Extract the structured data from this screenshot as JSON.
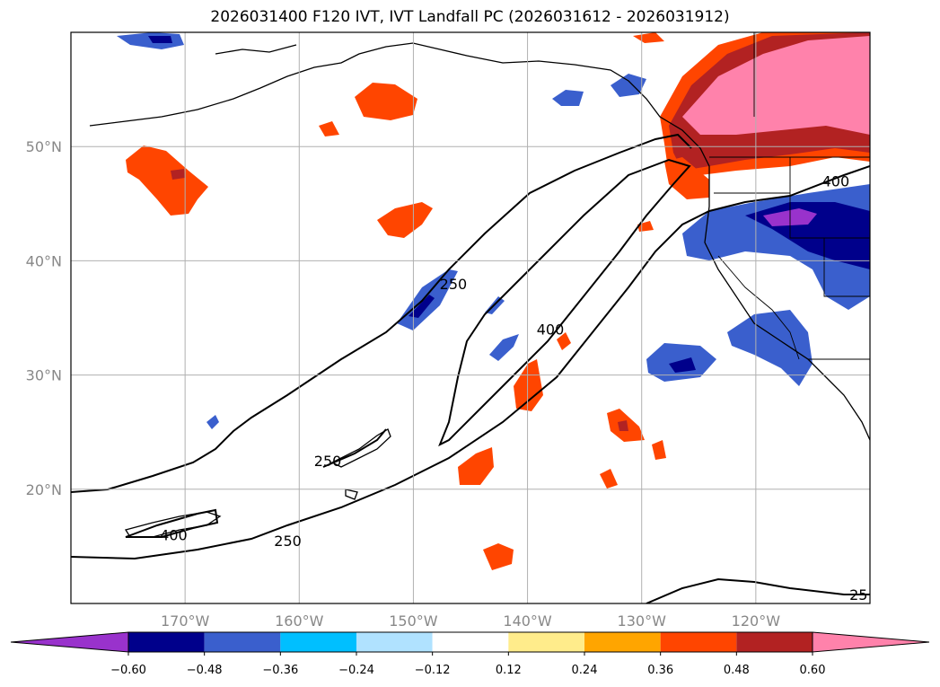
{
  "title": "2026031400 F120 IVT, IVT Landfall PC (2026031612 - 2026031912)",
  "map": {
    "lat_ticks": [
      {
        "lat": 50,
        "label": "50°N"
      },
      {
        "lat": 40,
        "label": "40°N"
      },
      {
        "lat": 30,
        "label": "30°N"
      },
      {
        "lat": 20,
        "label": "20°N"
      }
    ],
    "lon_ticks": [
      {
        "lon": -170,
        "label": "170°W"
      },
      {
        "lon": -160,
        "label": "160°W"
      },
      {
        "lon": -150,
        "label": "150°W"
      },
      {
        "lon": -140,
        "label": "140°W"
      },
      {
        "lon": -130,
        "label": "130°W"
      },
      {
        "lon": -120,
        "label": "120°W"
      }
    ],
    "extent": {
      "lon_min": -180,
      "lon_max": -110,
      "lat_min": 10,
      "lat_max": 60
    },
    "contour_labels": [
      {
        "text": "250",
        "lon": -146.5,
        "lat": 38
      },
      {
        "text": "400",
        "lon": -138,
        "lat": 34
      },
      {
        "text": "250",
        "lon": -157.5,
        "lat": 22.5
      },
      {
        "text": "400",
        "lon": -171,
        "lat": 16
      },
      {
        "text": "250",
        "lon": -161,
        "lat": 15.5
      },
      {
        "text": "400",
        "lon": -113,
        "lat": 47
      },
      {
        "text": "25",
        "lon": -111,
        "lat": 10.8
      }
    ]
  },
  "colorbar": {
    "colors": [
      "#9932cc",
      "#00008b",
      "#3a5fcd",
      "#00bfff",
      "#b0e2ff",
      "#ffffff",
      "#ffec8b",
      "#ffa500",
      "#ff4500",
      "#b22222",
      "#ff82ab"
    ],
    "tick_labels": [
      "−0.60",
      "−0.48",
      "−0.36",
      "−0.24",
      "−0.12",
      "0.12",
      "0.24",
      "0.36",
      "0.48",
      "0.60"
    ]
  }
}
